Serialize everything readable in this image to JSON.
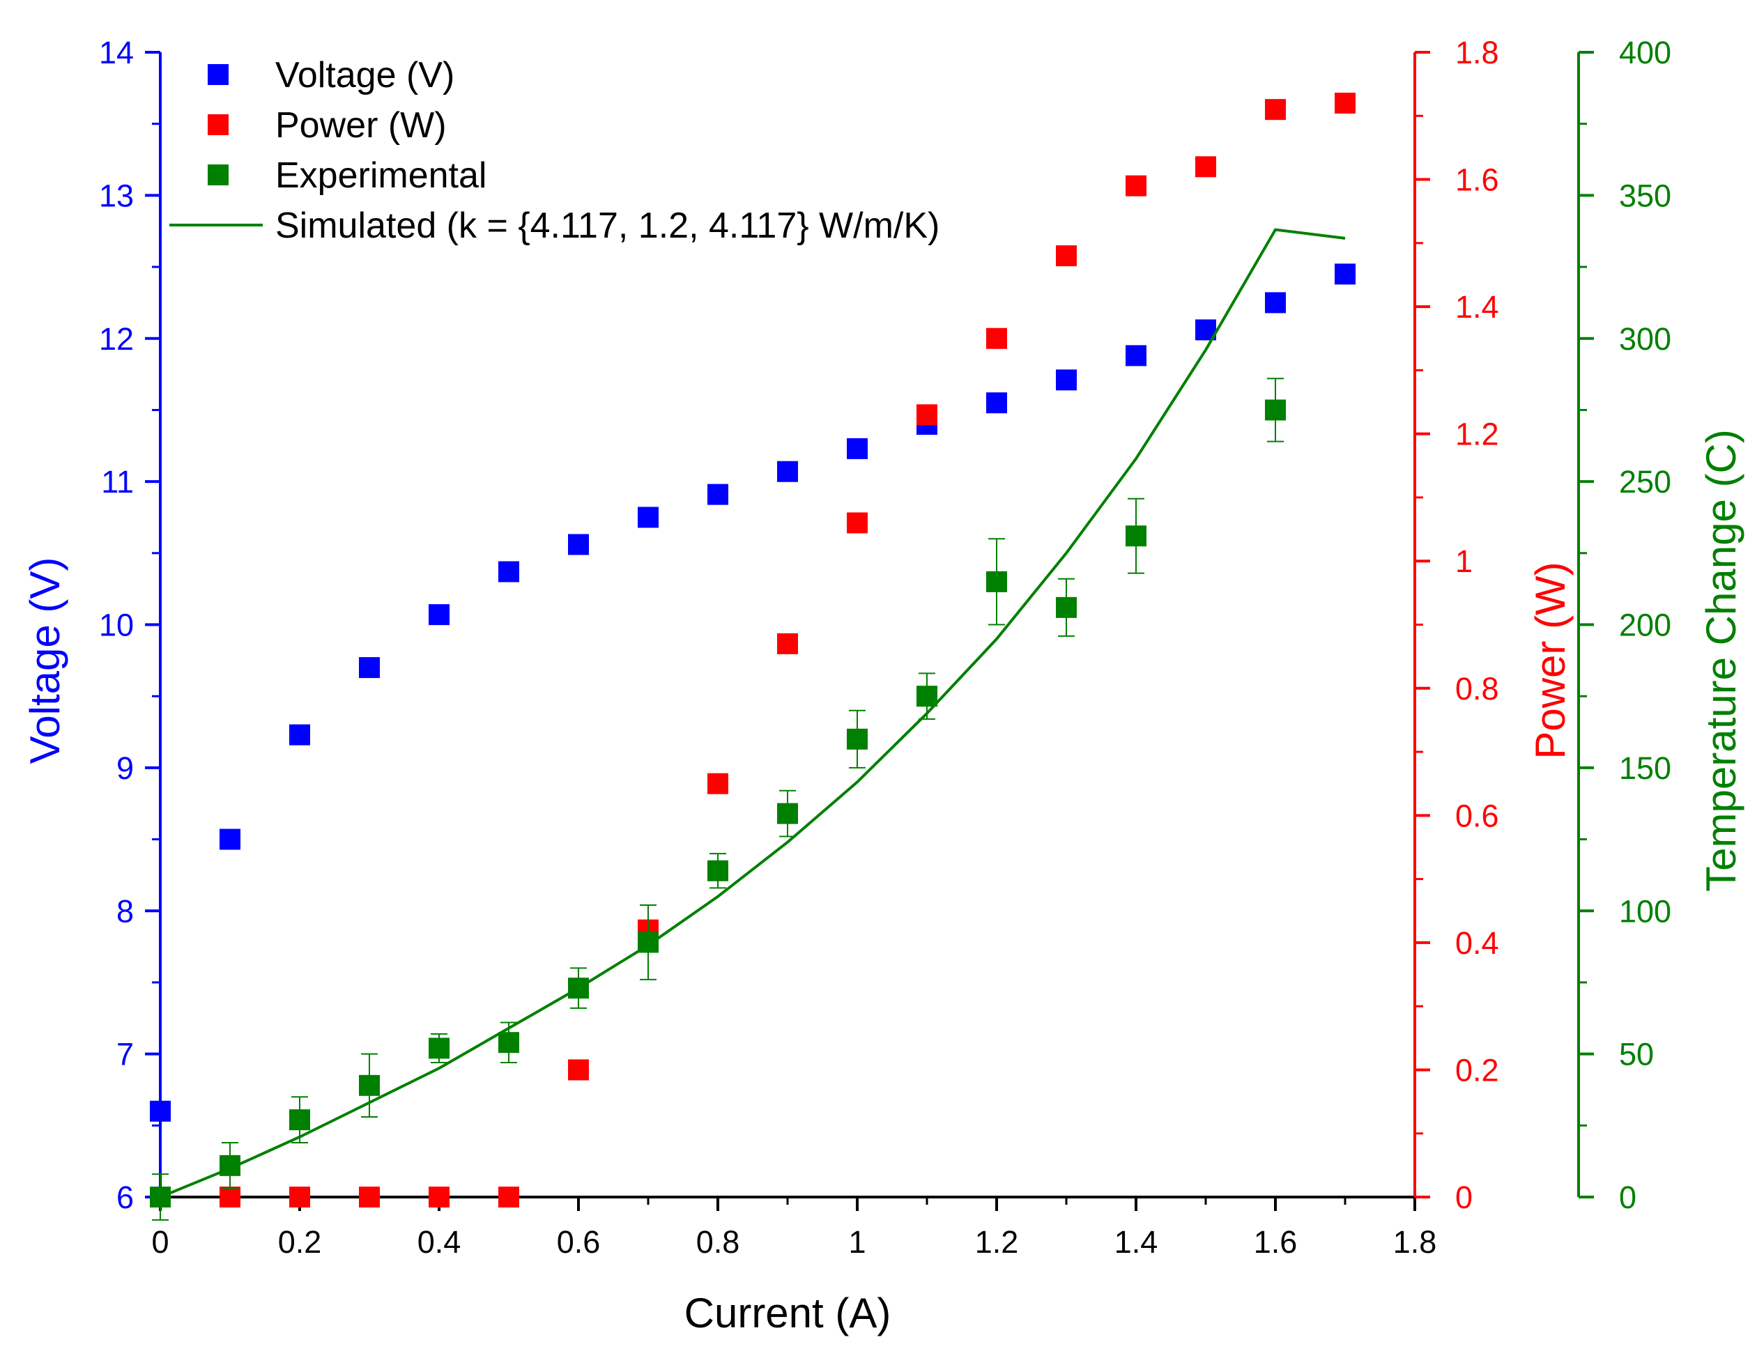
{
  "chart_data": {
    "type": "scatter",
    "title": "",
    "xlabel": "Current (A)",
    "xlim": [
      0,
      1.8
    ],
    "xticks": [
      "0",
      "0.2",
      "0.4",
      "0.6",
      "0.8",
      "1",
      "1.2",
      "1.4",
      "1.6",
      "1.8"
    ],
    "axes": {
      "voltage": {
        "label": "Voltage (V)",
        "color": "#0000ff",
        "lim": [
          6,
          14
        ],
        "ticks": [
          "6",
          "7",
          "8",
          "9",
          "10",
          "11",
          "12",
          "13",
          "14"
        ]
      },
      "power": {
        "label": "Power (W)",
        "color": "#ff0000",
        "lim": [
          0,
          1.8
        ],
        "ticks": [
          "0",
          "0.2",
          "0.4",
          "0.6",
          "0.8",
          "1",
          "1.2",
          "1.4",
          "1.6",
          "1.8"
        ]
      },
      "temperature": {
        "label": "Temperature Change (C)",
        "color": "#008000",
        "lim": [
          0,
          400
        ],
        "ticks": [
          "0",
          "50",
          "100",
          "150",
          "200",
          "250",
          "300",
          "350",
          "400"
        ]
      }
    },
    "series": [
      {
        "name": "Voltage (V)",
        "axis": "voltage",
        "kind": "scatter",
        "color": "#0000ff",
        "x": [
          0,
          0.1,
          0.2,
          0.3,
          0.4,
          0.5,
          0.6,
          0.7,
          0.8,
          0.9,
          1.0,
          1.1,
          1.2,
          1.3,
          1.4,
          1.5,
          1.6,
          1.7
        ],
        "y": [
          6.6,
          8.5,
          9.23,
          9.7,
          10.07,
          10.37,
          10.56,
          10.75,
          10.91,
          11.07,
          11.23,
          11.4,
          11.55,
          11.71,
          11.88,
          12.06,
          12.25,
          12.45
        ]
      },
      {
        "name": "Power (W)",
        "axis": "power",
        "kind": "scatter",
        "color": "#ff0000",
        "x": [
          0.1,
          0.2,
          0.3,
          0.4,
          0.5,
          0.6,
          0.7,
          0.8,
          0.9,
          1.0,
          1.1,
          1.2,
          1.3,
          1.4,
          1.5,
          1.6,
          1.7
        ],
        "y": [
          0,
          0,
          0,
          0,
          0,
          0.2,
          0.42,
          0.65,
          0.87,
          1.06,
          1.23,
          1.35,
          1.48,
          1.59,
          1.62,
          1.71,
          1.72
        ]
      },
      {
        "name": "Experimental",
        "axis": "temperature",
        "kind": "scatter",
        "color": "#008000",
        "x": [
          0,
          0.1,
          0.2,
          0.3,
          0.4,
          0.5,
          0.6,
          0.7,
          0.8,
          0.9,
          1.0,
          1.1,
          1.2,
          1.3,
          1.4,
          1.6
        ],
        "y": [
          0,
          11,
          27,
          39,
          52,
          54,
          73,
          89,
          114,
          134,
          160,
          175,
          215,
          206,
          231,
          275
        ],
        "err": [
          8,
          8,
          8,
          11,
          5,
          7,
          7,
          13,
          6,
          8,
          10,
          8,
          15,
          10,
          13,
          11
        ]
      },
      {
        "name": "Simulated (k = {4.117, 1.2, 4.117} W/m/K)",
        "axis": "temperature",
        "kind": "line",
        "color": "#008000",
        "x": [
          0,
          0.1,
          0.2,
          0.3,
          0.4,
          0.5,
          0.6,
          0.7,
          0.8,
          0.9,
          1.0,
          1.1,
          1.2,
          1.3,
          1.4,
          1.5,
          1.6,
          1.7
        ],
        "y": [
          0,
          10,
          21,
          33,
          45,
          59,
          73,
          88,
          105,
          124,
          145,
          169,
          195,
          225,
          258,
          296,
          338,
          335
        ]
      }
    ],
    "legend": {
      "position": "top-left"
    }
  }
}
